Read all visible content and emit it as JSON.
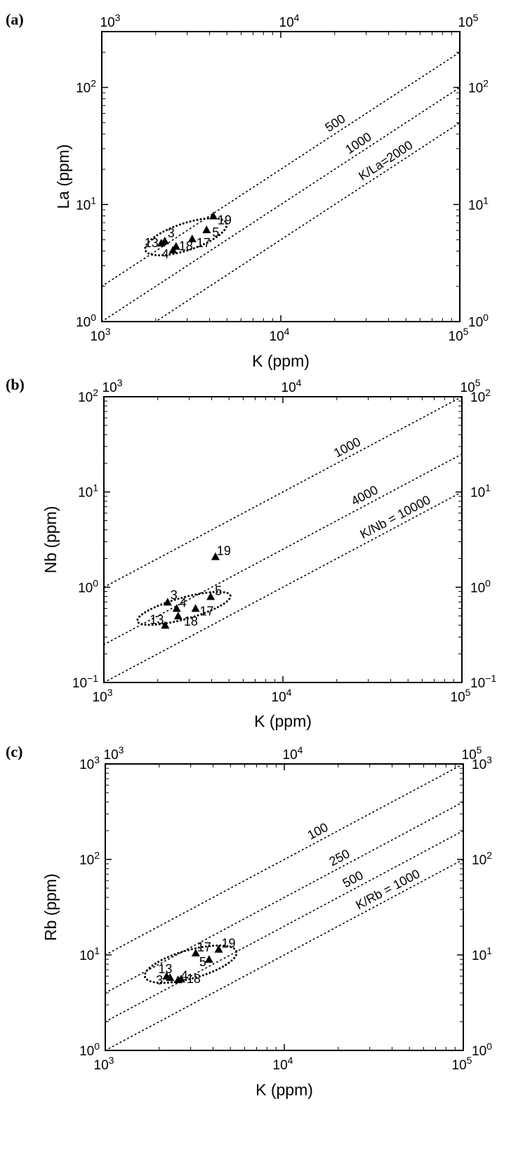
{
  "chart_data": [
    {
      "type": "scatter",
      "panel_label": "(a)",
      "xlabel": "K (ppm)",
      "ylabel": "La (ppm)",
      "xscale": "log",
      "yscale": "log",
      "xlim": [
        1000,
        100000
      ],
      "ylim": [
        1,
        300
      ],
      "x_ticks": [
        {
          "base": "10",
          "exp": "3"
        },
        {
          "base": "10",
          "exp": "4"
        },
        {
          "base": "10",
          "exp": "5"
        }
      ],
      "y_ticks": [
        {
          "base": "10",
          "exp": "0",
          "value": 1
        },
        {
          "base": "10",
          "exp": "1",
          "value": 10
        },
        {
          "base": "10",
          "exp": "2",
          "value": 100
        }
      ],
      "points": [
        {
          "label": "13",
          "x": 2150,
          "y": 4.7
        },
        {
          "label": "3",
          "x": 2250,
          "y": 4.9
        },
        {
          "label": "4",
          "x": 2500,
          "y": 4.1
        },
        {
          "label": "18",
          "x": 2600,
          "y": 4.4
        },
        {
          "label": "17",
          "x": 3200,
          "y": 5.1
        },
        {
          "label": "5",
          "x": 3850,
          "y": 6.1
        },
        {
          "label": "19",
          "x": 4200,
          "y": 8.0
        }
      ],
      "ratio_lines": [
        {
          "label": "500",
          "ratio": 500
        },
        {
          "label": "1000",
          "ratio": 1000
        },
        {
          "label": "K/La=2000",
          "ratio": 2000
        }
      ],
      "ellipse": {
        "center": [
          2950,
          5.3
        ],
        "x_range": [
          1900,
          5700
        ],
        "y_range": [
          3.2,
          8.4
        ]
      }
    },
    {
      "type": "scatter",
      "panel_label": "(b)",
      "xlabel": "K (ppm)",
      "ylabel": "Nb (ppm)",
      "xscale": "log",
      "yscale": "log",
      "xlim": [
        1000,
        100000
      ],
      "ylim": [
        0.1,
        100
      ],
      "x_ticks": [
        {
          "base": "10",
          "exp": "3"
        },
        {
          "base": "10",
          "exp": "4"
        },
        {
          "base": "10",
          "exp": "5"
        }
      ],
      "y_ticks": [
        {
          "base": "10",
          "exp": "−1",
          "value": 0.1
        },
        {
          "base": "10",
          "exp": "0",
          "value": 1
        },
        {
          "base": "10",
          "exp": "1",
          "value": 10
        },
        {
          "base": "10",
          "exp": "2",
          "value": 100
        }
      ],
      "points": [
        {
          "label": "13",
          "x": 2200,
          "y": 0.4
        },
        {
          "label": "3",
          "x": 2270,
          "y": 0.7
        },
        {
          "label": "4",
          "x": 2550,
          "y": 0.6
        },
        {
          "label": "18",
          "x": 2600,
          "y": 0.5
        },
        {
          "label": "17",
          "x": 3250,
          "y": 0.6
        },
        {
          "label": "5",
          "x": 3950,
          "y": 0.8
        },
        {
          "label": "19",
          "x": 4200,
          "y": 2.1
        }
      ],
      "ratio_lines": [
        {
          "label": "1000",
          "ratio": 1000
        },
        {
          "label": "4000",
          "ratio": 4000
        },
        {
          "label": "K/Nb = 10000",
          "ratio": 10000
        }
      ],
      "ellipse": {
        "center": [
          2800,
          0.6
        ],
        "x_range": [
          1750,
          6050
        ],
        "y_range": [
          0.38,
          0.98
        ]
      }
    },
    {
      "type": "scatter",
      "panel_label": "(c)",
      "xlabel": "K (ppm)",
      "ylabel": "Rb (ppm)",
      "xscale": "log",
      "yscale": "log",
      "xlim": [
        1000,
        100000
      ],
      "ylim": [
        1,
        1000
      ],
      "x_ticks": [
        {
          "base": "10",
          "exp": "3"
        },
        {
          "base": "10",
          "exp": "4"
        },
        {
          "base": "10",
          "exp": "5"
        }
      ],
      "y_ticks": [
        {
          "base": "10",
          "exp": "0",
          "value": 1
        },
        {
          "base": "10",
          "exp": "1",
          "value": 10
        },
        {
          "base": "10",
          "exp": "2",
          "value": 100
        },
        {
          "base": "10",
          "exp": "3",
          "value": 1000
        }
      ],
      "points": [
        {
          "label": "13",
          "x": 2200,
          "y": 6.0
        },
        {
          "label": "3",
          "x": 2300,
          "y": 5.8
        },
        {
          "label": "4",
          "x": 2550,
          "y": 5.5
        },
        {
          "label": "18",
          "x": 2650,
          "y": 5.6
        },
        {
          "label": "17",
          "x": 3200,
          "y": 10.5
        },
        {
          "label": "5",
          "x": 3800,
          "y": 9.0
        },
        {
          "label": "19",
          "x": 4300,
          "y": 11.5
        }
      ],
      "ratio_lines": [
        {
          "label": "100",
          "ratio": 100
        },
        {
          "label": "250",
          "ratio": 250
        },
        {
          "label": "500",
          "ratio": 500
        },
        {
          "label": "K/Rb = 1000",
          "ratio": 1000
        }
      ],
      "ellipse": {
        "center": [
          3000,
          8.0
        ],
        "x_range": [
          1800,
          6100
        ],
        "y_range": [
          4.3,
          15.0
        ]
      }
    }
  ]
}
